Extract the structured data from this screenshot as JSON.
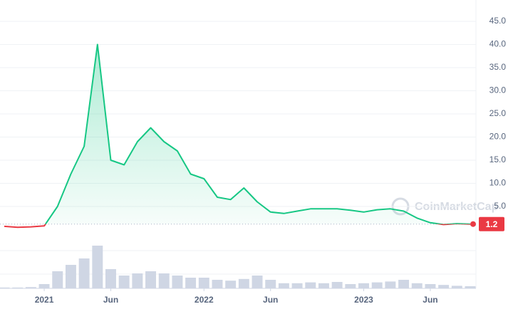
{
  "chart_data": {
    "type": "line",
    "x": [
      "2020-10",
      "2020-11",
      "2020-12",
      "2021-01",
      "2021-02",
      "2021-03",
      "2021-04",
      "2021-05",
      "2021-06",
      "2021-07",
      "2021-08",
      "2021-09",
      "2021-10",
      "2021-11",
      "2021-12",
      "2022-01",
      "2022-02",
      "2022-03",
      "2022-04",
      "2022-05",
      "2022-06",
      "2022-07",
      "2022-08",
      "2022-09",
      "2022-10",
      "2022-11",
      "2022-12",
      "2023-01",
      "2023-02",
      "2023-03",
      "2023-04",
      "2023-05",
      "2023-06",
      "2023-07",
      "2023-08",
      "2023-09"
    ],
    "values": [
      0.7,
      0.5,
      0.6,
      0.8,
      5,
      12,
      18,
      40,
      15,
      14,
      19,
      22,
      19,
      17,
      12,
      11,
      7,
      6.5,
      9,
      6,
      3.8,
      3.5,
      4,
      4.5,
      4.5,
      4.5,
      4.2,
      3.8,
      4.3,
      4.5,
      4,
      2.5,
      1.5,
      1.1,
      1.3,
      1.2
    ],
    "volume": [
      2,
      2,
      3,
      10,
      40,
      55,
      70,
      100,
      45,
      30,
      35,
      40,
      35,
      30,
      25,
      25,
      20,
      18,
      22,
      30,
      20,
      12,
      12,
      14,
      12,
      15,
      10,
      12,
      14,
      16,
      20,
      12,
      10,
      8,
      6,
      5
    ],
    "volume_lim": [
      0,
      100
    ],
    "color_up": "#16c784",
    "color_down": "#ea3943",
    "volume_color": "#cfd6e4",
    "baseline": 1.2,
    "watermark": "CoinMarketCap",
    "xlim": [
      "2020-10",
      "2023-09"
    ],
    "xticks": [
      {
        "value": "2021-01",
        "label": "2021"
      },
      {
        "value": "2021-06",
        "label": "Jun"
      },
      {
        "value": "2022-01",
        "label": "2022"
      },
      {
        "value": "2022-06",
        "label": "Jun"
      },
      {
        "value": "2023-01",
        "label": "2023"
      },
      {
        "value": "2023-06",
        "label": "Jun"
      }
    ],
    "ylim": [
      0,
      45
    ],
    "yticks": [
      {
        "value": 5,
        "label": "5.0"
      },
      {
        "value": 10,
        "label": "10.0"
      },
      {
        "value": 15,
        "label": "15.0"
      },
      {
        "value": 20,
        "label": "20.0"
      },
      {
        "value": 25,
        "label": "25.0"
      },
      {
        "value": 30,
        "label": "30.0"
      },
      {
        "value": 35,
        "label": "35.0"
      },
      {
        "value": 40,
        "label": "40.0"
      },
      {
        "value": 45,
        "label": "45.0"
      }
    ],
    "grid": true
  }
}
